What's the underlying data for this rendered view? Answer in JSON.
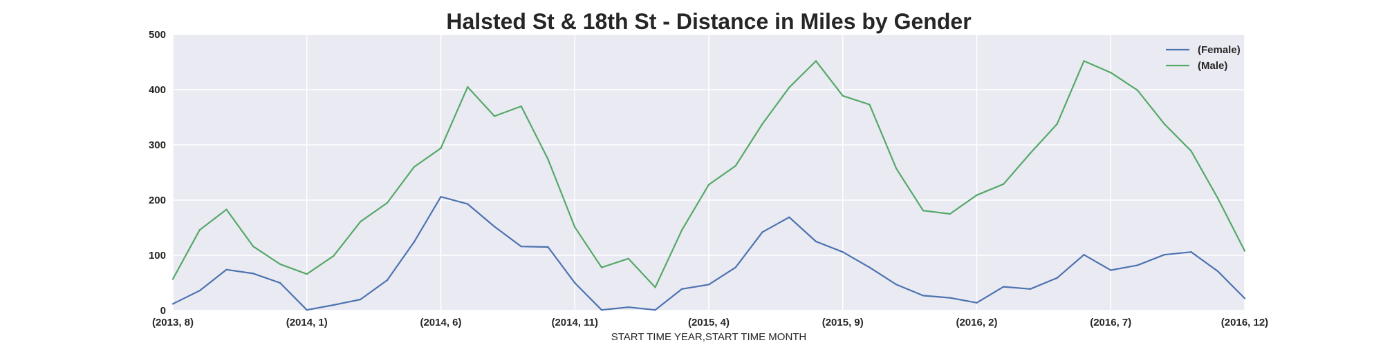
{
  "chart_data": {
    "type": "line",
    "title": "Halsted St & 18th St - Distance in Miles by Gender",
    "xlabel": "START TIME YEAR,START TIME MONTH",
    "ylabel": "",
    "ylim": [
      0,
      500
    ],
    "yticks": [
      0,
      100,
      200,
      300,
      400,
      500
    ],
    "grid": true,
    "legend_position": "top-right",
    "x": [
      "(2013, 8)",
      "(2013, 9)",
      "(2013, 10)",
      "(2013, 11)",
      "(2013, 12)",
      "(2014, 1)",
      "(2014, 2)",
      "(2014, 3)",
      "(2014, 4)",
      "(2014, 5)",
      "(2014, 6)",
      "(2014, 7)",
      "(2014, 8)",
      "(2014, 9)",
      "(2014, 10)",
      "(2014, 11)",
      "(2014, 12)",
      "(2015, 1)",
      "(2015, 2)",
      "(2015, 3)",
      "(2015, 4)",
      "(2015, 5)",
      "(2015, 6)",
      "(2015, 7)",
      "(2015, 8)",
      "(2015, 9)",
      "(2015, 10)",
      "(2015, 11)",
      "(2015, 12)",
      "(2016, 1)",
      "(2016, 2)",
      "(2016, 3)",
      "(2016, 4)",
      "(2016, 5)",
      "(2016, 6)",
      "(2016, 7)",
      "(2016, 8)",
      "(2016, 9)",
      "(2016, 10)",
      "(2016, 11)",
      "(2016, 12)"
    ],
    "xticks": [
      {
        "index": 0,
        "label": "(2013, 8)"
      },
      {
        "index": 5,
        "label": "(2014, 1)"
      },
      {
        "index": 10,
        "label": "(2014, 6)"
      },
      {
        "index": 15,
        "label": "(2014, 11)"
      },
      {
        "index": 20,
        "label": "(2015, 4)"
      },
      {
        "index": 25,
        "label": "(2015, 9)"
      },
      {
        "index": 30,
        "label": "(2016, 2)"
      },
      {
        "index": 35,
        "label": "(2016, 7)"
      },
      {
        "index": 40,
        "label": "(2016, 12)"
      }
    ],
    "series": [
      {
        "name": "(Female)",
        "color": "#4c72b0",
        "values": [
          12,
          36,
          74,
          67,
          50,
          1,
          10,
          20,
          55,
          124,
          206,
          193,
          152,
          116,
          115,
          50,
          1,
          6,
          1,
          39,
          47,
          78,
          142,
          169,
          125,
          106,
          78,
          47,
          27,
          23,
          14,
          43,
          39,
          59,
          101,
          73,
          82,
          101,
          106,
          71,
          22
        ]
      },
      {
        "name": "(Male)",
        "color": "#55a868",
        "values": [
          57,
          146,
          183,
          116,
          84,
          66,
          99,
          161,
          195,
          260,
          294,
          405,
          352,
          370,
          274,
          151,
          78,
          94,
          42,
          146,
          228,
          262,
          338,
          404,
          452,
          389,
          373,
          257,
          181,
          175,
          209,
          229,
          285,
          338,
          452,
          431,
          399,
          338,
          289,
          203,
          108
        ]
      }
    ]
  }
}
